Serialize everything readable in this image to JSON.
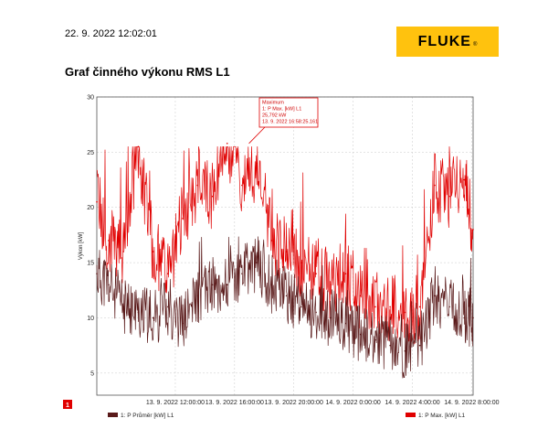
{
  "header": {
    "timestamp": "22. 9. 2022 12:02:01",
    "logo_text": "FLUKE",
    "logo_mark": "®"
  },
  "chart_title": "Graf činného výkonu RMS L1",
  "marker_label": "1",
  "colors": {
    "avg": "#5a1a1a",
    "max": "#e00000",
    "logo": "#ffc20e"
  },
  "chart_data": {
    "type": "line",
    "title": "Graf činného výkonu RMS L1",
    "ylabel": "Výkon [kW]",
    "xlabel": "",
    "ylim": [
      3,
      30
    ],
    "yticks": [
      5,
      10,
      15,
      20,
      25,
      30
    ],
    "x_start_hour": 6.7,
    "x_end_hour": 32.1,
    "xticks": [
      {
        "hour": 12,
        "label": "13. 9. 2022 12:00:00"
      },
      {
        "hour": 16,
        "label": "13. 9. 2022 16:00:00"
      },
      {
        "hour": 20,
        "label": "13. 9. 2022 20:00:00"
      },
      {
        "hour": 24,
        "label": "14. 9. 2022 0:00:00"
      },
      {
        "hour": 28,
        "label": "14. 9. 2022 4:00:00"
      },
      {
        "hour": 32,
        "label": "14. 9. 2022 8:00:00"
      }
    ],
    "grid": true,
    "legend_position": "bottom",
    "series": [
      {
        "name": "1: P Průměr [kW] L1",
        "color": "#5a1a1a",
        "x": [
          6.7,
          7.5,
          8.5,
          9.5,
          10.5,
          11.5,
          12.5,
          13.5,
          14.5,
          15.5,
          16.5,
          17.5,
          18.5,
          19.5,
          20.5,
          21.5,
          22.5,
          23.5,
          24.5,
          25.5,
          26.5,
          27.5,
          28.5,
          29.5,
          30.5,
          31.5,
          32.1
        ],
        "values": [
          14,
          13,
          11,
          10.5,
          10,
          11,
          9.5,
          12,
          13,
          13,
          14,
          15,
          13,
          12,
          11,
          10.5,
          10,
          9.5,
          8.5,
          8,
          7.5,
          7,
          7.5,
          12,
          11,
          10,
          10
        ]
      },
      {
        "name": "1: P Max. [kW] L1",
        "color": "#e00000",
        "x": [
          6.7,
          7.5,
          8.5,
          9.5,
          10.5,
          11.5,
          12.5,
          13.5,
          14.5,
          15.5,
          16.5,
          17.5,
          18.5,
          19.5,
          20.5,
          21.5,
          22.5,
          23.5,
          24.5,
          25.5,
          26.5,
          27.5,
          28.5,
          29.5,
          30.5,
          31.5,
          32.1
        ],
        "values": [
          20.5,
          17,
          16,
          25.5,
          16,
          14,
          19,
          22,
          21,
          25.792,
          22,
          24,
          17,
          16,
          15,
          14,
          13,
          14,
          12,
          11,
          11,
          10.5,
          11,
          22,
          21,
          22.5,
          18
        ]
      }
    ],
    "annotations": [
      {
        "x": 16.97,
        "y": 25.792,
        "lines": [
          "Maximum",
          "1: P Max. [kW] L1",
          "25,792 kW",
          "13. 9. 2022 16:58:25.161"
        ]
      }
    ]
  }
}
